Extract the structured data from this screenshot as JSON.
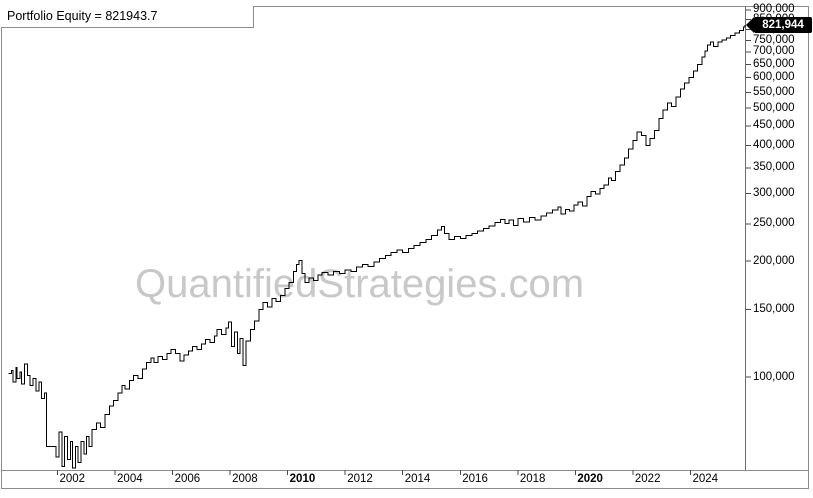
{
  "title": {
    "label": "Portfolio Equity = 821943.7"
  },
  "watermark": "QuantifiedStrategies.com",
  "price_tag": {
    "value": "821,944"
  },
  "colors": {
    "line": "#000000",
    "watermark": "#c8c8c8",
    "border": "#8c8c8c",
    "tick": "#4a4a4a",
    "tag_bg": "#000000",
    "tag_text": "#ffffff"
  },
  "chart_data": {
    "type": "line",
    "title": "Portfolio Equity = 821943.7",
    "xlabel": "",
    "ylabel": "",
    "y_scale": "log",
    "grid": false,
    "legend_position": "none",
    "final_value": 821943.7,
    "y_ticks": [
      900000,
      850000,
      800000,
      750000,
      700000,
      650000,
      600000,
      550000,
      500000,
      450000,
      400000,
      350000,
      300000,
      250000,
      200000,
      150000,
      100000
    ],
    "x_ticks": [
      2002,
      2004,
      2006,
      2008,
      2010,
      2012,
      2014,
      2016,
      2018,
      2020,
      2022,
      2024
    ],
    "x_bold_ticks": [
      2010,
      2020
    ],
    "x_range": [
      2000.3,
      2025.9
    ],
    "y_range": [
      57000,
      900000
    ],
    "series": [
      {
        "name": "Portfolio Equity",
        "points": [
          [
            2000.3,
            102000
          ],
          [
            2000.4,
            104000
          ],
          [
            2000.45,
            97000
          ],
          [
            2000.55,
            106000
          ],
          [
            2000.6,
            99000
          ],
          [
            2000.7,
            103000
          ],
          [
            2000.75,
            96000
          ],
          [
            2000.85,
            108000
          ],
          [
            2000.95,
            101000
          ],
          [
            2001.05,
            95000
          ],
          [
            2001.15,
            99000
          ],
          [
            2001.25,
            92000
          ],
          [
            2001.35,
            97000
          ],
          [
            2001.45,
            88000
          ],
          [
            2001.55,
            91000
          ],
          [
            2001.62,
            66000
          ],
          [
            2001.85,
            66000
          ],
          [
            2001.95,
            62000
          ],
          [
            2002.05,
            72000
          ],
          [
            2002.15,
            58500
          ],
          [
            2002.25,
            70000
          ],
          [
            2002.35,
            61000
          ],
          [
            2002.45,
            68000
          ],
          [
            2002.52,
            58000
          ],
          [
            2002.62,
            66000
          ],
          [
            2002.72,
            60000
          ],
          [
            2002.82,
            68000
          ],
          [
            2002.92,
            63000
          ],
          [
            2003.0,
            70000
          ],
          [
            2003.1,
            66000
          ],
          [
            2003.2,
            73000
          ],
          [
            2003.35,
            76000
          ],
          [
            2003.5,
            74000
          ],
          [
            2003.65,
            80000
          ],
          [
            2003.8,
            84000
          ],
          [
            2003.95,
            87000
          ],
          [
            2004.1,
            91000
          ],
          [
            2004.25,
            95000
          ],
          [
            2004.35,
            93000
          ],
          [
            2004.5,
            98000
          ],
          [
            2004.65,
            101000
          ],
          [
            2004.8,
            99000
          ],
          [
            2004.95,
            105000
          ],
          [
            2005.1,
            109000
          ],
          [
            2005.25,
            112000
          ],
          [
            2005.35,
            109000
          ],
          [
            2005.5,
            113000
          ],
          [
            2005.65,
            111000
          ],
          [
            2005.8,
            115000
          ],
          [
            2005.95,
            118000
          ],
          [
            2006.1,
            115000
          ],
          [
            2006.25,
            110000
          ],
          [
            2006.4,
            114000
          ],
          [
            2006.55,
            117000
          ],
          [
            2006.7,
            120000
          ],
          [
            2006.85,
            118000
          ],
          [
            2007.0,
            122000
          ],
          [
            2007.15,
            125000
          ],
          [
            2007.3,
            123000
          ],
          [
            2007.45,
            128000
          ],
          [
            2007.55,
            133000
          ],
          [
            2007.7,
            129000
          ],
          [
            2007.85,
            134000
          ],
          [
            2007.95,
            139000
          ],
          [
            2008.05,
            120000
          ],
          [
            2008.15,
            131000
          ],
          [
            2008.25,
            115000
          ],
          [
            2008.35,
            126000
          ],
          [
            2008.45,
            107000
          ],
          [
            2008.55,
            124000
          ],
          [
            2008.7,
            133000
          ],
          [
            2008.85,
            140000
          ],
          [
            2009.0,
            150000
          ],
          [
            2009.15,
            156000
          ],
          [
            2009.3,
            152000
          ],
          [
            2009.45,
            160000
          ],
          [
            2009.6,
            157000
          ],
          [
            2009.75,
            163000
          ],
          [
            2009.9,
            170000
          ],
          [
            2010.05,
            176000
          ],
          [
            2010.2,
            188000
          ],
          [
            2010.3,
            196000
          ],
          [
            2010.4,
            201000
          ],
          [
            2010.5,
            186000
          ],
          [
            2010.6,
            176000
          ],
          [
            2010.75,
            181000
          ],
          [
            2010.9,
            178000
          ],
          [
            2011.05,
            184000
          ],
          [
            2011.2,
            187000
          ],
          [
            2011.4,
            184000
          ],
          [
            2011.6,
            188000
          ],
          [
            2011.8,
            186000
          ],
          [
            2012.0,
            190000
          ],
          [
            2012.2,
            188000
          ],
          [
            2012.4,
            193000
          ],
          [
            2012.6,
            196000
          ],
          [
            2012.8,
            194000
          ],
          [
            2013.0,
            199000
          ],
          [
            2013.2,
            203000
          ],
          [
            2013.4,
            207000
          ],
          [
            2013.6,
            211000
          ],
          [
            2013.8,
            214000
          ],
          [
            2014.0,
            211000
          ],
          [
            2014.2,
            216000
          ],
          [
            2014.4,
            220000
          ],
          [
            2014.6,
            224000
          ],
          [
            2014.8,
            228000
          ],
          [
            2015.0,
            233000
          ],
          [
            2015.2,
            241000
          ],
          [
            2015.35,
            246000
          ],
          [
            2015.45,
            236000
          ],
          [
            2015.6,
            228000
          ],
          [
            2015.8,
            232000
          ],
          [
            2016.0,
            229000
          ],
          [
            2016.2,
            233000
          ],
          [
            2016.4,
            236000
          ],
          [
            2016.6,
            240000
          ],
          [
            2016.8,
            243000
          ],
          [
            2017.0,
            247000
          ],
          [
            2017.2,
            252000
          ],
          [
            2017.4,
            257000
          ],
          [
            2017.55,
            251000
          ],
          [
            2017.7,
            256000
          ],
          [
            2017.85,
            248000
          ],
          [
            2018.0,
            258000
          ],
          [
            2018.2,
            253000
          ],
          [
            2018.4,
            260000
          ],
          [
            2018.6,
            256000
          ],
          [
            2018.8,
            262000
          ],
          [
            2019.0,
            267000
          ],
          [
            2019.2,
            272000
          ],
          [
            2019.4,
            277000
          ],
          [
            2019.5,
            265000
          ],
          [
            2019.65,
            273000
          ],
          [
            2019.8,
            270000
          ],
          [
            2019.95,
            280000
          ],
          [
            2020.1,
            285000
          ],
          [
            2020.25,
            278000
          ],
          [
            2020.4,
            295000
          ],
          [
            2020.55,
            304000
          ],
          [
            2020.7,
            299000
          ],
          [
            2020.85,
            309000
          ],
          [
            2021.0,
            316000
          ],
          [
            2021.15,
            329000
          ],
          [
            2021.25,
            324000
          ],
          [
            2021.4,
            342000
          ],
          [
            2021.55,
            356000
          ],
          [
            2021.7,
            371000
          ],
          [
            2021.85,
            392000
          ],
          [
            2022.0,
            412000
          ],
          [
            2022.15,
            433000
          ],
          [
            2022.3,
            424000
          ],
          [
            2022.45,
            400000
          ],
          [
            2022.6,
            417000
          ],
          [
            2022.75,
            437000
          ],
          [
            2022.9,
            470000
          ],
          [
            2023.05,
            495000
          ],
          [
            2023.2,
            515000
          ],
          [
            2023.35,
            505000
          ],
          [
            2023.5,
            535000
          ],
          [
            2023.65,
            560000
          ],
          [
            2023.8,
            582000
          ],
          [
            2023.95,
            600000
          ],
          [
            2024.1,
            625000
          ],
          [
            2024.25,
            650000
          ],
          [
            2024.4,
            680000
          ],
          [
            2024.5,
            705000
          ],
          [
            2024.6,
            730000
          ],
          [
            2024.7,
            742000
          ],
          [
            2024.8,
            724000
          ],
          [
            2024.95,
            742000
          ],
          [
            2025.1,
            752000
          ],
          [
            2025.25,
            760000
          ],
          [
            2025.4,
            772000
          ],
          [
            2025.55,
            784000
          ],
          [
            2025.7,
            797000
          ],
          [
            2025.85,
            812000
          ],
          [
            2025.9,
            821944
          ]
        ]
      }
    ]
  }
}
